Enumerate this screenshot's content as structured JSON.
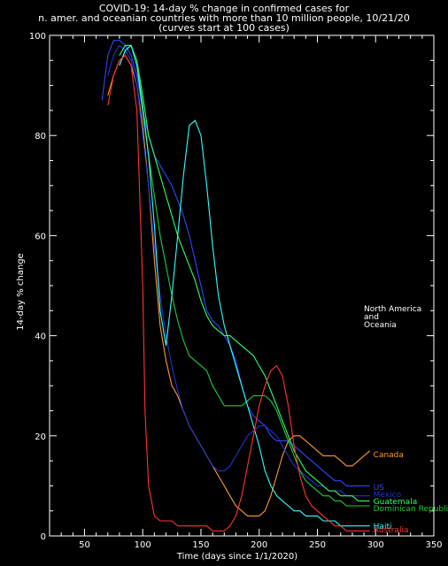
{
  "chart_data": {
    "type": "line",
    "title": "COVID-19: 14-day % change in confirmed cases for",
    "title_line2": "n. amer. and oceanian countries with more than 10 million people, 10/21/20",
    "subtitle": "(curves start at 100 cases)",
    "xlabel": "Time (days since 1/1/2020)",
    "ylabel": "14-day % change",
    "xlim": [
      20,
      350
    ],
    "ylim": [
      0,
      100
    ],
    "xticks": [
      50,
      100,
      150,
      200,
      250,
      300,
      350
    ],
    "yticks": [
      0,
      20,
      40,
      60,
      80,
      100
    ],
    "annotation": [
      "North America",
      "and",
      "Oceania"
    ],
    "background": "#000000",
    "axis_color": "#ffffff",
    "series": [
      {
        "name": "Canada",
        "color": "#ff9933",
        "x": [
          70,
          75,
          80,
          85,
          90,
          95,
          100,
          105,
          110,
          115,
          120,
          125,
          130,
          135,
          140,
          145,
          150,
          155,
          160,
          165,
          170,
          175,
          180,
          185,
          190,
          195,
          200,
          205,
          210,
          215,
          220,
          225,
          230,
          235,
          240,
          245,
          250,
          255,
          260,
          265,
          270,
          275,
          280,
          285,
          290,
          295
        ],
        "y": [
          88,
          92,
          95,
          96,
          94,
          90,
          82,
          70,
          55,
          42,
          35,
          30,
          28,
          25,
          22,
          20,
          18,
          16,
          14,
          12,
          10,
          8,
          6,
          5,
          4,
          4,
          4,
          5,
          8,
          12,
          16,
          19,
          20,
          20,
          19,
          18,
          17,
          16,
          16,
          16,
          15,
          14,
          14,
          15,
          16,
          17
        ]
      },
      {
        "name": "US",
        "color": "#3344ff",
        "x": [
          65,
          70,
          75,
          80,
          85,
          90,
          95,
          100,
          105,
          110,
          115,
          120,
          125,
          130,
          135,
          140,
          145,
          150,
          155,
          160,
          165,
          170,
          175,
          180,
          185,
          190,
          195,
          200,
          205,
          210,
          215,
          220,
          225,
          230,
          235,
          240,
          245,
          250,
          255,
          260,
          265,
          270,
          275,
          280,
          285,
          290,
          295
        ],
        "y": [
          87,
          96,
          99,
          99,
          98,
          96,
          92,
          85,
          80,
          76,
          74,
          72,
          70,
          67,
          64,
          60,
          55,
          50,
          45,
          43,
          42,
          40,
          38,
          35,
          30,
          26,
          24,
          23,
          22,
          20,
          19,
          19,
          19,
          18,
          17,
          16,
          15,
          14,
          13,
          12,
          11,
          11,
          10,
          10,
          10,
          10,
          10
        ]
      },
      {
        "name": "Mexico",
        "color": "#2233cc",
        "x": [
          70,
          75,
          80,
          85,
          90,
          95,
          100,
          105,
          110,
          115,
          120,
          125,
          130,
          135,
          140,
          145,
          150,
          155,
          160,
          165,
          170,
          175,
          180,
          185,
          190,
          195,
          200,
          205,
          210,
          215,
          220,
          225,
          230,
          235,
          240,
          245,
          250,
          255,
          260,
          265,
          270,
          275,
          280,
          285,
          290,
          295
        ],
        "y": [
          92,
          96,
          98,
          97,
          95,
          90,
          80,
          70,
          58,
          48,
          40,
          34,
          29,
          25,
          22,
          20,
          18,
          16,
          14,
          13,
          13,
          14,
          16,
          18,
          20,
          21,
          22,
          22,
          21,
          20,
          18,
          16,
          14,
          13,
          12,
          11,
          10,
          10,
          9,
          9,
          9,
          8,
          8,
          8,
          8,
          8
        ]
      },
      {
        "name": "Guatemala",
        "color": "#33ff66",
        "x": [
          80,
          85,
          90,
          95,
          100,
          105,
          110,
          115,
          120,
          125,
          130,
          135,
          140,
          145,
          150,
          155,
          160,
          165,
          170,
          175,
          180,
          185,
          190,
          195,
          200,
          205,
          210,
          215,
          220,
          225,
          230,
          235,
          240,
          245,
          250,
          255,
          260,
          265,
          270,
          275,
          280,
          285,
          290,
          295
        ],
        "y": [
          96,
          98,
          98,
          95,
          88,
          80,
          76,
          72,
          68,
          64,
          60,
          57,
          54,
          51,
          47,
          44,
          42,
          41,
          40,
          40,
          39,
          38,
          37,
          36,
          34,
          32,
          29,
          26,
          23,
          20,
          17,
          15,
          13,
          12,
          11,
          10,
          9,
          9,
          8,
          8,
          8,
          7,
          7,
          7
        ]
      },
      {
        "name": "Dominican Republic",
        "color": "#22cc33",
        "x": [
          80,
          85,
          90,
          95,
          100,
          105,
          110,
          115,
          120,
          125,
          130,
          135,
          140,
          145,
          150,
          155,
          160,
          165,
          170,
          175,
          180,
          185,
          190,
          195,
          200,
          205,
          210,
          215,
          220,
          225,
          230,
          235,
          240,
          245,
          250,
          255,
          260,
          265,
          270,
          275,
          280,
          285,
          290,
          295
        ],
        "y": [
          94,
          97,
          98,
          95,
          86,
          76,
          68,
          60,
          54,
          48,
          43,
          39,
          36,
          35,
          34,
          33,
          30,
          28,
          26,
          26,
          26,
          26,
          27,
          28,
          28,
          28,
          27,
          25,
          22,
          19,
          16,
          13,
          11,
          10,
          9,
          8,
          8,
          7,
          7,
          6,
          6,
          6,
          6,
          6
        ]
      },
      {
        "name": "Haiti",
        "color": "#33ffff",
        "x": [
          80,
          85,
          90,
          95,
          100,
          105,
          110,
          115,
          120,
          125,
          130,
          135,
          140,
          145,
          150,
          155,
          160,
          165,
          170,
          175,
          180,
          185,
          190,
          195,
          200,
          205,
          210,
          215,
          220,
          225,
          230,
          235,
          240,
          245,
          250,
          255,
          260,
          265,
          270,
          275,
          280,
          285,
          290,
          295
        ],
        "y": [
          94,
          97,
          98,
          94,
          85,
          76,
          62,
          45,
          38,
          48,
          60,
          72,
          82,
          83,
          80,
          70,
          58,
          48,
          42,
          38,
          34,
          30,
          26,
          22,
          18,
          13,
          10,
          8,
          7,
          6,
          5,
          5,
          4,
          4,
          4,
          3,
          3,
          3,
          2,
          2,
          2,
          2,
          2,
          2
        ]
      },
      {
        "name": "Australia",
        "color": "#ff3333",
        "x": [
          70,
          75,
          80,
          85,
          90,
          95,
          100,
          102,
          105,
          110,
          115,
          120,
          125,
          130,
          135,
          140,
          145,
          150,
          155,
          160,
          165,
          170,
          175,
          180,
          185,
          190,
          195,
          200,
          205,
          210,
          215,
          220,
          225,
          230,
          235,
          240,
          245,
          250,
          255,
          260,
          265,
          270,
          275,
          280,
          285,
          290,
          295
        ],
        "y": [
          86,
          92,
          95,
          96,
          94,
          85,
          50,
          25,
          10,
          4,
          3,
          3,
          3,
          2,
          2,
          2,
          2,
          2,
          2,
          1,
          1,
          1,
          2,
          4,
          8,
          14,
          20,
          26,
          30,
          33,
          34,
          32,
          26,
          18,
          12,
          8,
          6,
          5,
          4,
          3,
          2,
          2,
          1,
          1,
          1,
          1,
          1
        ]
      }
    ]
  }
}
